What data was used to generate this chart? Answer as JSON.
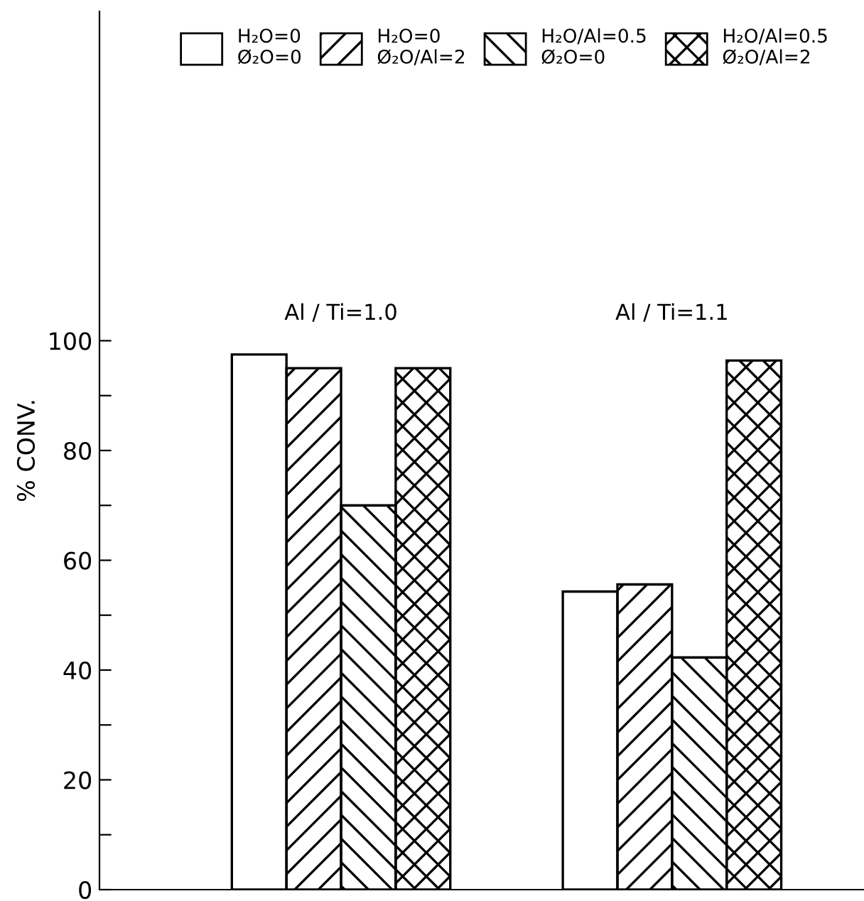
{
  "chart_data": {
    "type": "bar",
    "ylabel": "% CONV.",
    "categories": [
      "Al / Ti=1.0",
      "Al / Ti=1.1"
    ],
    "series": [
      {
        "name": "H₂O=0\nØ₂O=0",
        "color": "#000000",
        "values": [
          97.5,
          54.3
        ]
      },
      {
        "name": "H₂O=0\nØ₂O/Al=2",
        "color": "#000000",
        "values": [
          95,
          55.6
        ]
      },
      {
        "name": "H₂O/Al=0.5\nØ₂O=0",
        "color": "#000000",
        "values": [
          70,
          42.3
        ]
      },
      {
        "name": "H₂O/Al=0.5\nØ₂O/Al=2",
        "color": "#000000",
        "values": [
          95,
          96.4
        ]
      }
    ],
    "ylim": [
      0,
      160
    ],
    "yticks": [
      0,
      {
        "value": 10,
        "label": null
      },
      20,
      {
        "value": 30,
        "label": null
      },
      40,
      {
        "value": 50,
        "label": null
      },
      60,
      {
        "value": 70,
        "label": null
      },
      80,
      {
        "value": 90,
        "label": null
      },
      100
    ],
    "legend": "top",
    "grid": false
  }
}
